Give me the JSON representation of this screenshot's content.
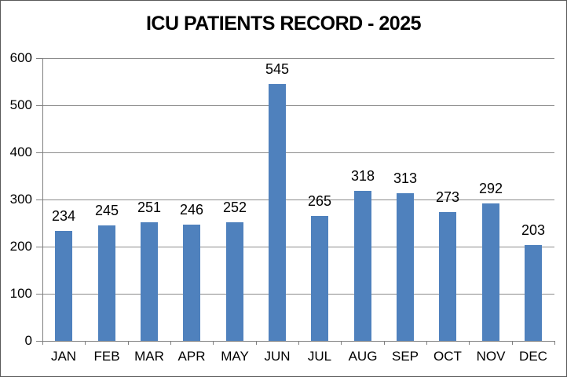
{
  "chart_data": {
    "type": "bar",
    "title": "ICU PATIENTS RECORD - 2025",
    "categories": [
      "JAN",
      "FEB",
      "MAR",
      "APR",
      "MAY",
      "JUN",
      "JUL",
      "AUG",
      "SEP",
      "OCT",
      "NOV",
      "DEC"
    ],
    "values": [
      234,
      245,
      251,
      246,
      252,
      545,
      265,
      318,
      313,
      273,
      292,
      203
    ],
    "xlabel": "",
    "ylabel": "",
    "ylim": [
      0,
      600
    ],
    "yticks": [
      0,
      100,
      200,
      300,
      400,
      500,
      600
    ],
    "grid": true,
    "legend_position": "none",
    "data_labels_shown": true,
    "colors": {
      "bar_fill": "#4F81BD",
      "gridline": "#8C8C8C",
      "axis_line": "#7F7F7F",
      "text": "#000000",
      "background": "#FFFFFF",
      "frame_border": "#595959"
    }
  }
}
